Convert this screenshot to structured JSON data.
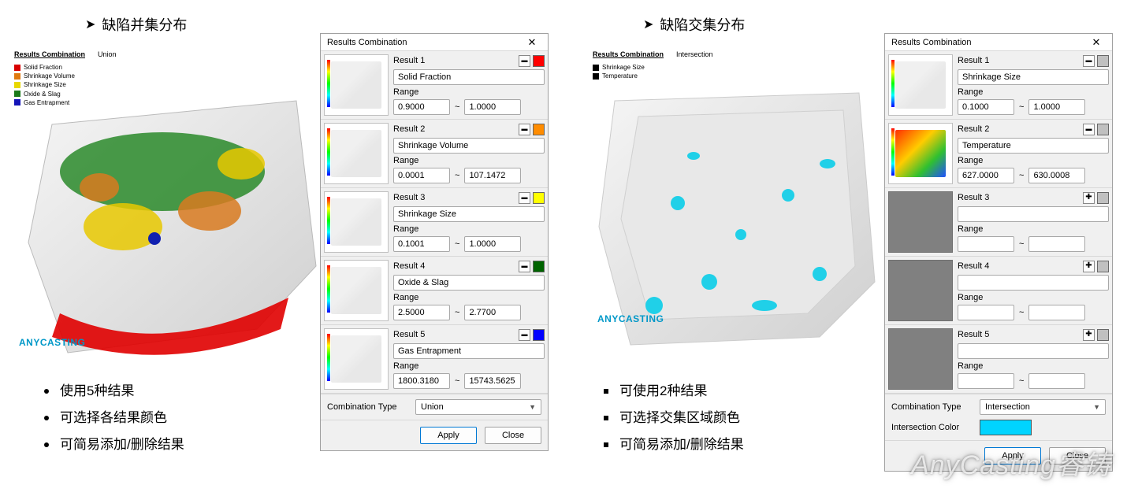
{
  "left": {
    "heading": "缺陷并集分布",
    "bullets": [
      "使用5种结果",
      "可选择各结果颜色",
      "可简易添加/删除结果"
    ],
    "viewport": {
      "title": "Results Combination",
      "mode": "Union",
      "legend": [
        {
          "label": "Solid Fraction",
          "color": "#d80000"
        },
        {
          "label": "Shrinkage Volume",
          "color": "#e07a10"
        },
        {
          "label": "Shrinkage Size",
          "color": "#e8d800"
        },
        {
          "label": "Oxide & Slag",
          "color": "#1a7a1a"
        },
        {
          "label": "Gas Entrapment",
          "color": "#1414b8"
        }
      ],
      "brand": "ANYCASTING"
    },
    "dialog": {
      "title": "Results Combination",
      "results": [
        {
          "label": "Result 1",
          "name": "Solid Fraction",
          "rmin": "0.9000",
          "rmax": "1.0000",
          "color": "#ff0000",
          "active": true
        },
        {
          "label": "Result 2",
          "name": "Shrinkage Volume",
          "rmin": "0.0001",
          "rmax": "107.1472",
          "color": "#ff8c00",
          "active": true
        },
        {
          "label": "Result 3",
          "name": "Shrinkage Size",
          "rmin": "0.1001",
          "rmax": "1.0000",
          "color": "#ffff00",
          "active": true
        },
        {
          "label": "Result 4",
          "name": "Oxide & Slag",
          "rmin": "2.5000",
          "rmax": "2.7700",
          "color": "#006400",
          "active": true
        },
        {
          "label": "Result 5",
          "name": "Gas Entrapment",
          "rmin": "1800.3180",
          "rmax": "15743.5625",
          "color": "#0000ff",
          "active": true
        }
      ],
      "range_label": "Range",
      "combo_label": "Combination Type",
      "combo_value": "Union",
      "apply": "Apply",
      "close": "Close"
    }
  },
  "right": {
    "heading": "缺陷交集分布",
    "bullets": [
      "可使用2种结果",
      "可选择交集区域颜色",
      "可简易添加/删除结果"
    ],
    "viewport": {
      "title": "Results Combination",
      "mode": "Intersection",
      "legend": [
        {
          "label": "Shrinkage Size",
          "color": "#000000"
        },
        {
          "label": "Temperature",
          "color": "#000000"
        }
      ],
      "brand": "ANYCASTING"
    },
    "dialog": {
      "title": "Results Combination",
      "results": [
        {
          "label": "Result 1",
          "name": "Shrinkage Size",
          "rmin": "0.1000",
          "rmax": "1.0000",
          "color": "#c0c0c0",
          "active": true,
          "thumb": "gray"
        },
        {
          "label": "Result 2",
          "name": "Temperature",
          "rmin": "627.0000",
          "rmax": "630.0008",
          "color": "#c0c0c0",
          "active": true,
          "thumb": "heat"
        },
        {
          "label": "Result 3",
          "name": "",
          "rmin": "",
          "rmax": "",
          "color": "#c0c0c0",
          "active": false
        },
        {
          "label": "Result 4",
          "name": "",
          "rmin": "",
          "rmax": "",
          "color": "#c0c0c0",
          "active": false
        },
        {
          "label": "Result 5",
          "name": "",
          "rmin": "",
          "rmax": "",
          "color": "#c0c0c0",
          "active": false
        }
      ],
      "range_label": "Range",
      "combo_label": "Combination Type",
      "combo_value": "Intersection",
      "inter_color_label": "Intersection Color",
      "inter_color": "#00d4ff",
      "apply": "Apply",
      "close": "Close"
    }
  },
  "watermark": "AnyCasting睿铸"
}
